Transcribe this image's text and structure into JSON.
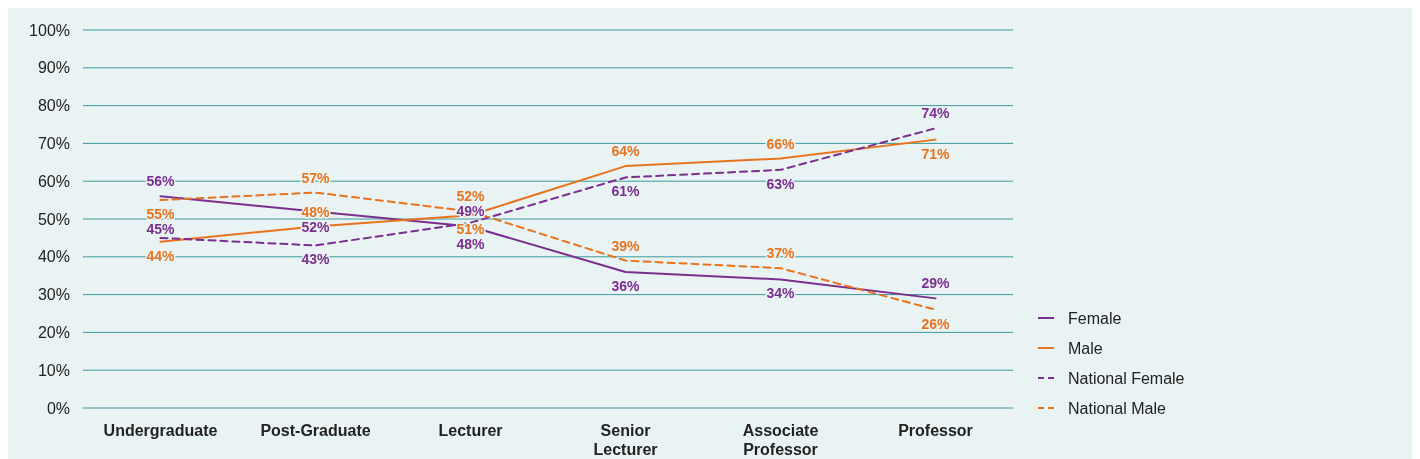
{
  "chart_data": {
    "type": "line",
    "categories": [
      "Undergraduate",
      "Post-Graduate",
      "Lecturer",
      "Senior Lecturer",
      "Associate Professor",
      "Professor"
    ],
    "series": [
      {
        "name": "Female",
        "color": "#7a2f8f",
        "values": [
          56,
          52,
          48,
          36,
          34,
          29
        ],
        "value_labels": [
          "56%",
          "52%",
          "48%",
          "36%",
          "34%",
          "29%"
        ]
      },
      {
        "name": "Male",
        "color": "#e8731e",
        "values": [
          44,
          48,
          51,
          64,
          66,
          71
        ],
        "value_labels": [
          "44%",
          "48%",
          "51%",
          "64%",
          "66%",
          "71%"
        ]
      },
      {
        "name": "National Female",
        "color": "#7a2f8f",
        "line_style": "dashed",
        "values": [
          45,
          43,
          49,
          61,
          63,
          74
        ],
        "value_labels": [
          "45%",
          "43%",
          "49%",
          "61%",
          "63%",
          "74%"
        ]
      },
      {
        "name": "National Male",
        "color": "#e8731e",
        "line_style": "dashed",
        "values": [
          55,
          57,
          52,
          39,
          37,
          26
        ],
        "value_labels": [
          "55%",
          "57%",
          "52%",
          "39%",
          "37%",
          "26%"
        ]
      }
    ],
    "ylim": [
      0,
      100
    ],
    "yticks": [
      {
        "value": 0,
        "label": "0%"
      },
      {
        "value": 10,
        "label": "10%"
      },
      {
        "value": 20,
        "label": "20%"
      },
      {
        "value": 30,
        "label": "30%"
      },
      {
        "value": 40,
        "label": "40%"
      },
      {
        "value": 50,
        "label": "50%"
      },
      {
        "value": 60,
        "label": "60%"
      },
      {
        "value": 70,
        "label": "70%"
      },
      {
        "value": 80,
        "label": "80%"
      },
      {
        "value": 90,
        "label": "90%"
      },
      {
        "value": 100,
        "label": "100%"
      }
    ],
    "grid": "y",
    "legend": "right",
    "marker": "none"
  }
}
